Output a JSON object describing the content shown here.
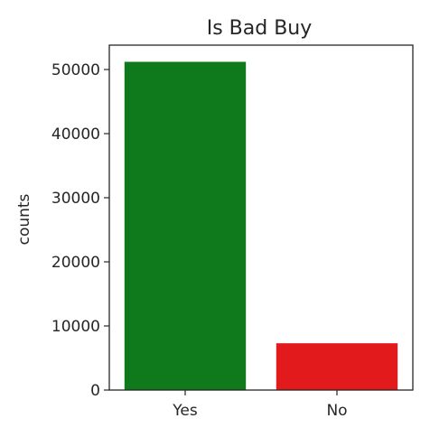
{
  "chart_data": {
    "type": "bar",
    "title": "Is Bad Buy",
    "xlabel": "",
    "ylabel": "counts",
    "categories": [
      "Yes",
      "No"
    ],
    "values": [
      51200,
      7300
    ],
    "colors": [
      "#0f7a1c",
      "#e31a1c"
    ],
    "ylim": [
      0,
      53800
    ],
    "yticks": [
      0,
      10000,
      20000,
      30000,
      40000,
      50000
    ],
    "ytick_labels": [
      "0",
      "10000",
      "20000",
      "30000",
      "40000",
      "50000"
    ],
    "grid": false,
    "legend": "none"
  }
}
